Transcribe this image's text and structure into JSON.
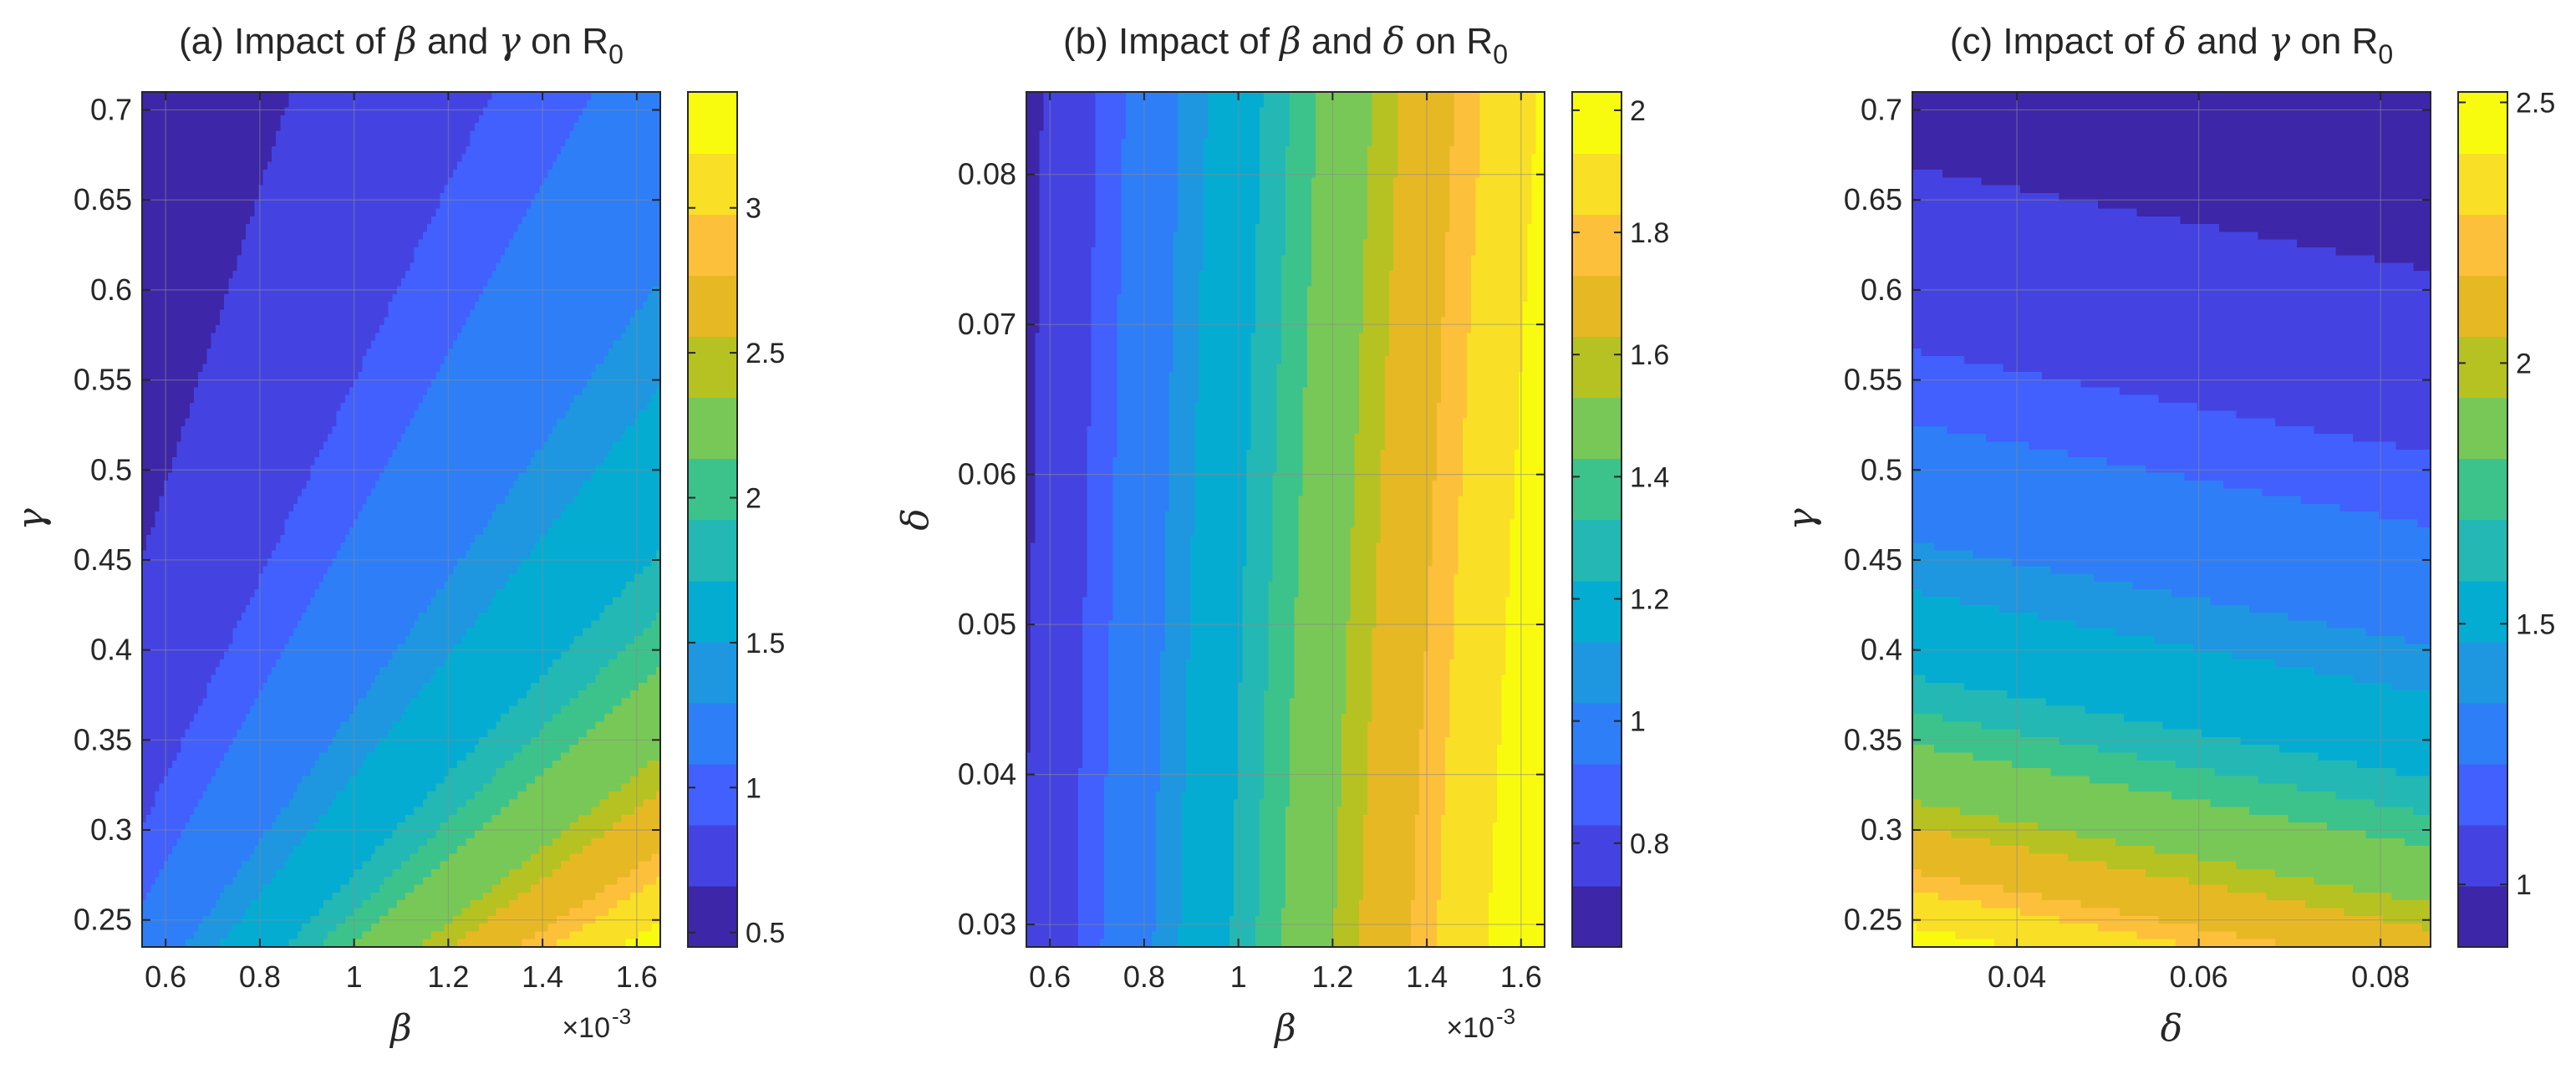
{
  "colors": {
    "colormap": [
      "#3e26a8",
      "#4443e2",
      "#4160fe",
      "#2e7ef7",
      "#1e97e0",
      "#05acd2",
      "#23b8b4",
      "#3cc38c",
      "#78c857",
      "#b6c221",
      "#e6b924",
      "#fdc03b",
      "#f9df25",
      "#f9fb0e"
    ],
    "axis": "#262626",
    "grid": "#8a8a8a"
  },
  "chart_data": [
    {
      "id": "a",
      "type": "contourf",
      "title": "(a) Impact of β and γ on R0",
      "title_parts": [
        "(a) Impact of ",
        "β",
        " and ",
        "γ",
        " on R",
        "0"
      ],
      "xlabel": "β",
      "ylabel": "γ",
      "x_exponent_label": "×10",
      "x_exponent_power": "-3",
      "xlim": [
        0.55,
        1.65
      ],
      "ylim": [
        0.235,
        0.71
      ],
      "xticks": [
        0.6,
        0.8,
        1,
        1.2,
        1.4,
        1.6
      ],
      "xtick_labels": [
        "0.6",
        "0.8",
        "1",
        "1.2",
        "1.4",
        "1.6"
      ],
      "yticks": [
        0.25,
        0.3,
        0.35,
        0.4,
        0.45,
        0.5,
        0.55,
        0.6,
        0.65,
        0.7
      ],
      "ytick_labels": [
        "0.25",
        "0.3",
        "0.35",
        "0.4",
        "0.45",
        "0.5",
        "0.55",
        "0.6",
        "0.65",
        "0.7"
      ],
      "model": {
        "form": "k*x/y",
        "k": 0.49
      },
      "clim": [
        0.45,
        3.4
      ],
      "levels": 20,
      "colorbar_ticks": [
        0.5,
        1,
        1.5,
        2,
        2.5,
        3
      ],
      "colorbar_labels": [
        "0.5",
        "1",
        "1.5",
        "2",
        "2.5",
        "3"
      ]
    },
    {
      "id": "b",
      "type": "contourf",
      "title": "(b) Impact of β and δ on R0",
      "title_parts": [
        "(b) Impact of ",
        "β",
        " and ",
        "δ",
        " on R",
        "0"
      ],
      "xlabel": "β",
      "ylabel": "δ",
      "x_exponent_label": "×10",
      "x_exponent_power": "-3",
      "xlim": [
        0.55,
        1.65
      ],
      "ylim": [
        0.0285,
        0.0855
      ],
      "xticks": [
        0.6,
        0.8,
        1,
        1.2,
        1.4,
        1.6
      ],
      "xtick_labels": [
        "0.6",
        "0.8",
        "1",
        "1.2",
        "1.4",
        "1.6"
      ],
      "yticks": [
        0.03,
        0.04,
        0.05,
        0.06,
        0.07,
        0.08
      ],
      "ytick_labels": [
        "0.03",
        "0.04",
        "0.05",
        "0.06",
        "0.07",
        "0.08"
      ],
      "model": {
        "form": "k*x/(g+y)",
        "k": 1.062,
        "g": 0.8
      },
      "clim": [
        0.63,
        2.03
      ],
      "levels": 20,
      "colorbar_ticks": [
        0.8,
        1,
        1.2,
        1.4,
        1.6,
        1.8,
        2
      ],
      "colorbar_labels": [
        "0.8",
        "1",
        "1.2",
        "1.4",
        "1.6",
        "1.8",
        "2"
      ]
    },
    {
      "id": "c",
      "type": "contourf",
      "title": "(c) Impact of δ and γ on R0",
      "title_parts": [
        "(c) Impact of ",
        "δ",
        " and ",
        "γ",
        " on R",
        "0"
      ],
      "xlabel": "δ",
      "ylabel": "γ",
      "x_exponent_label": "",
      "x_exponent_power": "",
      "xlim": [
        0.0285,
        0.0855
      ],
      "ylim": [
        0.235,
        0.71
      ],
      "xticks": [
        0.04,
        0.06,
        0.08
      ],
      "xtick_labels": [
        "0.04",
        "0.06",
        "0.08"
      ],
      "yticks": [
        0.25,
        0.3,
        0.35,
        0.4,
        0.45,
        0.5,
        0.55,
        0.6,
        0.65,
        0.7
      ],
      "ytick_labels": [
        "0.25",
        "0.3",
        "0.35",
        "0.4",
        "0.45",
        "0.5",
        "0.55",
        "0.6",
        "0.65",
        "0.7"
      ],
      "model": {
        "form": "k/(y+x)",
        "k": 0.67
      },
      "clim": [
        0.88,
        2.52
      ],
      "levels": 20,
      "colorbar_ticks": [
        1,
        1.5,
        2,
        2.5
      ],
      "colorbar_labels": [
        "1",
        "1.5",
        "2",
        "2.5"
      ]
    }
  ]
}
